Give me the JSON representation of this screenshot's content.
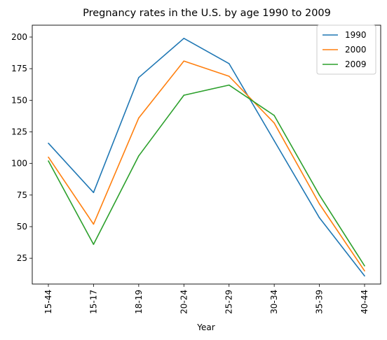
{
  "chart_data": {
    "type": "line",
    "title": "Pregnancy rates in the U.S. by age 1990 to 2009",
    "xlabel": "Year",
    "ylabel": "",
    "categories": [
      "15-44",
      "15-17",
      "18-19",
      "20-24",
      "25-29",
      "30-34",
      "35-39",
      "40-44"
    ],
    "yticks": [
      25,
      50,
      75,
      100,
      125,
      150,
      175,
      200
    ],
    "ylim": [
      4.6,
      209.4
    ],
    "grid": false,
    "legend_position": "top-right",
    "series": [
      {
        "name": "1990",
        "color": "#1f77b4",
        "values": [
          116,
          77,
          168,
          199,
          179,
          118,
          57,
          11
        ]
      },
      {
        "name": "2000",
        "color": "#ff7f0e",
        "values": [
          105,
          52,
          136,
          181,
          169,
          132,
          68,
          15
        ]
      },
      {
        "name": "2009",
        "color": "#2ca02c",
        "values": [
          102,
          36,
          106,
          154,
          162,
          138,
          75,
          19
        ]
      }
    ]
  }
}
